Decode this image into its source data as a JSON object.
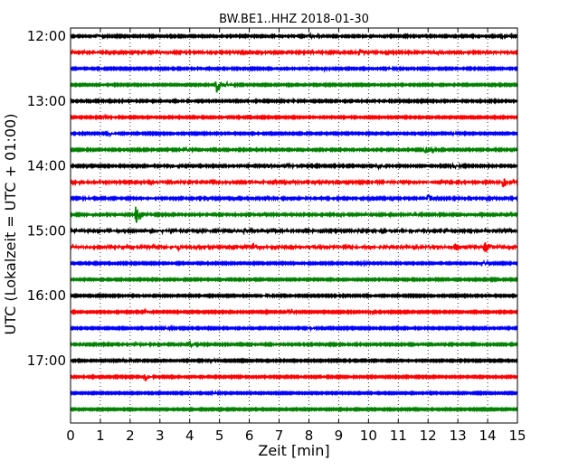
{
  "chart_data": {
    "type": "line",
    "title": "BW.BE1..HHZ 2018-01-30",
    "xlabel": "Zeit  [min]",
    "ylabel": "UTC (Lokalzeit = UTC + 01:00)",
    "xlim": [
      0,
      15
    ],
    "x_ticks": [
      "0",
      "1",
      "2",
      "3",
      "4",
      "5",
      "6",
      "7",
      "8",
      "9",
      "10",
      "11",
      "12",
      "13",
      "14",
      "15"
    ],
    "y_ticks": [
      "12:00",
      "13:00",
      "14:00",
      "15:00",
      "16:00",
      "17:00"
    ],
    "grid_x": true,
    "colors": [
      "#000000",
      "#ff0000",
      "#0000ff",
      "#008000"
    ],
    "series": [
      {
        "start": "12:00",
        "color": "#000000",
        "events": [
          [
            0.9,
            0.25
          ],
          [
            8.0,
            0.35
          ],
          [
            14.5,
            0.3
          ]
        ],
        "noise": 0.05
      },
      {
        "start": "12:15",
        "color": "#ff0000",
        "events": [
          [
            2.9,
            0.25
          ],
          [
            9.7,
            0.5
          ],
          [
            12.2,
            0.25
          ]
        ],
        "noise": 0.07
      },
      {
        "start": "12:30",
        "color": "#0000ff",
        "events": [
          [
            8.5,
            0.2
          ],
          [
            10.6,
            0.15
          ]
        ],
        "noise": 0.04
      },
      {
        "start": "12:45",
        "color": "#008000",
        "events": [
          [
            4.9,
            1.2
          ],
          [
            5.2,
            0.3
          ]
        ],
        "noise": 0.04
      },
      {
        "start": "13:00",
        "color": "#000000",
        "events": [
          [
            7.4,
            0.15
          ]
        ],
        "noise": 0.05
      },
      {
        "start": "13:15",
        "color": "#ff0000",
        "events": [
          [
            1.1,
            0.15
          ]
        ],
        "noise": 0.04
      },
      {
        "start": "13:30",
        "color": "#0000ff",
        "events": [
          [
            1.3,
            0.2
          ],
          [
            12.8,
            0.25
          ]
        ],
        "noise": 0.04
      },
      {
        "start": "13:45",
        "color": "#008000",
        "events": [
          [
            3.8,
            0.3
          ],
          [
            11.9,
            0.65
          ]
        ],
        "noise": 0.05
      },
      {
        "start": "14:00",
        "color": "#000000",
        "events": [
          [
            3.4,
            0.3
          ],
          [
            6.6,
            0.25
          ],
          [
            7.3,
            0.3
          ],
          [
            10.3,
            0.25
          ],
          [
            12.8,
            0.3
          ]
        ],
        "noise": 0.05
      },
      {
        "start": "14:15",
        "color": "#ff0000",
        "events": [
          [
            6.0,
            0.25
          ],
          [
            14.5,
            0.9
          ]
        ],
        "noise": 0.08
      },
      {
        "start": "14:30",
        "color": "#0000ff",
        "events": [
          [
            12.0,
            0.6
          ],
          [
            0.3,
            0.2
          ]
        ],
        "noise": 0.06
      },
      {
        "start": "14:45",
        "color": "#008000",
        "events": [
          [
            2.2,
            1.9
          ],
          [
            11.4,
            0.25
          ]
        ],
        "noise": 0.06
      },
      {
        "start": "15:00",
        "color": "#000000",
        "events": [
          [
            3.0,
            0.2
          ],
          [
            5.8,
            0.2
          ]
        ],
        "noise": 0.08
      },
      {
        "start": "15:15",
        "color": "#ff0000",
        "events": [
          [
            3.6,
            0.35
          ],
          [
            6.1,
            0.7
          ],
          [
            12.9,
            0.4
          ],
          [
            13.9,
            0.9
          ]
        ],
        "noise": 0.1
      },
      {
        "start": "15:30",
        "color": "#0000ff",
        "events": [
          [
            13.8,
            0.4
          ],
          [
            9.8,
            0.15
          ]
        ],
        "noise": 0.04
      },
      {
        "start": "15:45",
        "color": "#008000",
        "events": [],
        "noise": 0.04
      },
      {
        "start": "16:00",
        "color": "#000000",
        "events": [
          [
            6.5,
            0.15
          ]
        ],
        "noise": 0.04
      },
      {
        "start": "16:15",
        "color": "#ff0000",
        "events": [
          [
            2.5,
            0.15
          ],
          [
            7.3,
            0.2
          ],
          [
            10.0,
            0.15
          ]
        ],
        "noise": 0.04
      },
      {
        "start": "16:30",
        "color": "#0000ff",
        "events": [
          [
            3.2,
            0.2
          ],
          [
            8.0,
            0.2
          ]
        ],
        "noise": 0.04
      },
      {
        "start": "16:45",
        "color": "#008000",
        "events": [
          [
            4.0,
            0.35
          ],
          [
            2.2,
            0.15
          ]
        ],
        "noise": 0.05
      },
      {
        "start": "17:00",
        "color": "#000000",
        "events": [
          [
            1.8,
            0.2
          ],
          [
            4.7,
            0.15
          ]
        ],
        "noise": 0.04
      },
      {
        "start": "17:15",
        "color": "#ff0000",
        "events": [
          [
            2.5,
            0.5
          ]
        ],
        "noise": 0.04
      },
      {
        "start": "17:30",
        "color": "#0000ff",
        "events": [
          [
            4.8,
            0.15
          ]
        ],
        "noise": 0.03
      },
      {
        "start": "17:45",
        "color": "#008000",
        "events": [],
        "noise": 0.03
      }
    ]
  }
}
